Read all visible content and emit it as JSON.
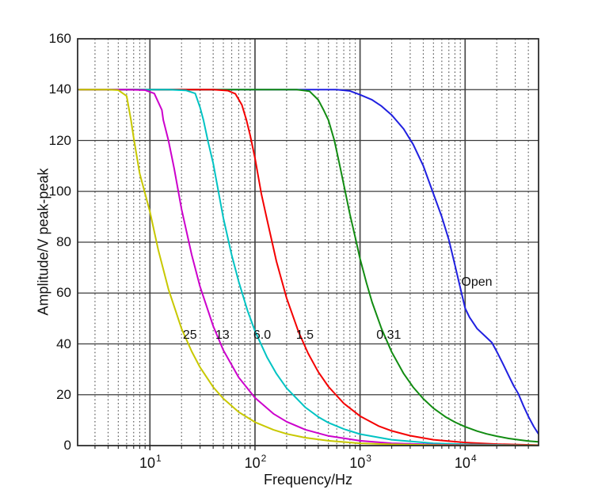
{
  "chart_data": {
    "type": "line",
    "title": "",
    "xlabel": "Frequency/Hz",
    "ylabel": "Amplitude/V peak-peak",
    "x_scale": "log",
    "xlim": [
      2.05,
      50000
    ],
    "ylim": [
      0,
      160
    ],
    "y_ticks": [
      0,
      20,
      40,
      60,
      80,
      100,
      120,
      140,
      160
    ],
    "x_ticks": [
      {
        "value": 10,
        "base": "10",
        "exp": "1"
      },
      {
        "value": 100,
        "base": "10",
        "exp": "2"
      },
      {
        "value": 1000,
        "base": "10",
        "exp": "3"
      },
      {
        "value": 10000,
        "base": "10",
        "exp": "4"
      }
    ],
    "minor_grid_multipliers": [
      2,
      3,
      4,
      5,
      6,
      7,
      8,
      9
    ],
    "grid": "on",
    "legend": "none",
    "plateau_amplitude": 140,
    "series": [
      {
        "label": "25",
        "color": "#c8c800",
        "corner_hz": 6.6,
        "points": [
          [
            2.1,
            140
          ],
          [
            3,
            140
          ],
          [
            4,
            140
          ],
          [
            5,
            139.8
          ],
          [
            6,
            137.5
          ],
          [
            6.6,
            128
          ],
          [
            7,
            121
          ],
          [
            8,
            107
          ],
          [
            10,
            92
          ],
          [
            12,
            77
          ],
          [
            15,
            61.5
          ],
          [
            20,
            46
          ],
          [
            25,
            37
          ],
          [
            30,
            30.8
          ],
          [
            40,
            23
          ],
          [
            50,
            18.5
          ],
          [
            70,
            13.2
          ],
          [
            100,
            9.2
          ],
          [
            150,
            6.2
          ],
          [
            200,
            4.6
          ],
          [
            300,
            3.1
          ],
          [
            500,
            1.9
          ],
          [
            1000,
            0.9
          ],
          [
            2000,
            0.5
          ],
          [
            5000,
            0.2
          ],
          [
            10000,
            0.1
          ],
          [
            20000,
            0.1
          ],
          [
            50000,
            0.1
          ]
        ]
      },
      {
        "label": "13",
        "color": "#cc00cc",
        "corner_hz": 13.4,
        "points": [
          [
            2.1,
            140
          ],
          [
            6,
            140
          ],
          [
            9,
            139.8
          ],
          [
            11,
            138.5
          ],
          [
            13,
            132
          ],
          [
            13.4,
            128
          ],
          [
            15,
            120
          ],
          [
            17,
            109
          ],
          [
            20,
            93
          ],
          [
            25,
            75
          ],
          [
            30,
            62.5
          ],
          [
            40,
            47
          ],
          [
            50,
            37.5
          ],
          [
            70,
            26.8
          ],
          [
            100,
            18.8
          ],
          [
            150,
            12.5
          ],
          [
            200,
            9.4
          ],
          [
            300,
            6.3
          ],
          [
            500,
            3.8
          ],
          [
            1000,
            1.9
          ],
          [
            2000,
            0.9
          ],
          [
            5000,
            0.4
          ],
          [
            10000,
            0.2
          ],
          [
            50000,
            0.1
          ]
        ]
      },
      {
        "label": "6.0",
        "color": "#00c3c3",
        "corner_hz": 32,
        "points": [
          [
            2.1,
            140
          ],
          [
            15,
            140
          ],
          [
            22,
            139.7
          ],
          [
            27,
            138.5
          ],
          [
            30,
            133
          ],
          [
            32.3,
            128
          ],
          [
            36,
            119
          ],
          [
            40,
            111
          ],
          [
            50,
            89.5
          ],
          [
            60,
            75
          ],
          [
            70,
            64.5
          ],
          [
            85,
            53
          ],
          [
            100,
            45
          ],
          [
            130,
            34.8
          ],
          [
            160,
            28.3
          ],
          [
            200,
            22.6
          ],
          [
            300,
            15.1
          ],
          [
            400,
            11.3
          ],
          [
            500,
            9
          ],
          [
            700,
            6.5
          ],
          [
            1000,
            4.5
          ],
          [
            2000,
            2.3
          ],
          [
            5000,
            0.9
          ],
          [
            10000,
            0.5
          ],
          [
            50000,
            0.1
          ]
        ]
      },
      {
        "label": "1.5",
        "color": "#f40000",
        "corner_hz": 83,
        "points": [
          [
            2.1,
            140
          ],
          [
            40,
            140
          ],
          [
            55,
            139.6
          ],
          [
            65,
            138.4
          ],
          [
            75,
            134
          ],
          [
            83,
            128
          ],
          [
            90,
            122
          ],
          [
            100,
            113
          ],
          [
            115,
            99
          ],
          [
            130,
            89
          ],
          [
            160,
            72.5
          ],
          [
            200,
            58
          ],
          [
            260,
            44.7
          ],
          [
            320,
            36.3
          ],
          [
            400,
            29
          ],
          [
            500,
            23.2
          ],
          [
            700,
            16.6
          ],
          [
            1000,
            11.6
          ],
          [
            1500,
            7.7
          ],
          [
            2000,
            5.8
          ],
          [
            3000,
            3.9
          ],
          [
            5000,
            2.3
          ],
          [
            10000,
            1.2
          ],
          [
            20000,
            0.6
          ],
          [
            50000,
            0.2
          ]
        ]
      },
      {
        "label": "0.31",
        "color": "#128c12",
        "corner_hz": 526,
        "points": [
          [
            2.1,
            140
          ],
          [
            250,
            140
          ],
          [
            330,
            139.4
          ],
          [
            400,
            136
          ],
          [
            450,
            132
          ],
          [
            500,
            128
          ],
          [
            570,
            120
          ],
          [
            650,
            109
          ],
          [
            730,
            99
          ],
          [
            800,
            91
          ],
          [
            900,
            82
          ],
          [
            1000,
            73.5
          ],
          [
            1150,
            64
          ],
          [
            1300,
            56.5
          ],
          [
            1600,
            46
          ],
          [
            2000,
            36.8
          ],
          [
            2600,
            28.3
          ],
          [
            3200,
            23
          ],
          [
            4000,
            18.4
          ],
          [
            5000,
            14.7
          ],
          [
            6500,
            11.3
          ],
          [
            8000,
            9.2
          ],
          [
            10000,
            7.4
          ],
          [
            13000,
            5.7
          ],
          [
            16000,
            4.6
          ],
          [
            20000,
            3.7
          ],
          [
            26000,
            2.8
          ],
          [
            32000,
            2.3
          ],
          [
            40000,
            1.8
          ],
          [
            50000,
            1.5
          ]
        ]
      },
      {
        "label": "Open",
        "color": "#2020e0",
        "corner_hz": 4500,
        "points": [
          [
            2.1,
            140
          ],
          [
            600,
            140
          ],
          [
            800,
            139.5
          ],
          [
            1000,
            138
          ],
          [
            1300,
            136
          ],
          [
            1600,
            133.5
          ],
          [
            2000,
            130
          ],
          [
            2600,
            124.5
          ],
          [
            3200,
            118.5
          ],
          [
            4000,
            110
          ],
          [
            5000,
            99
          ],
          [
            6000,
            90
          ],
          [
            7000,
            81
          ],
          [
            8000,
            71
          ],
          [
            9000,
            62
          ],
          [
            10000,
            54
          ],
          [
            11000,
            50.5
          ],
          [
            13000,
            46
          ],
          [
            16000,
            42.5
          ],
          [
            18000,
            40.5
          ],
          [
            20000,
            37
          ],
          [
            23000,
            32
          ],
          [
            26000,
            27.5
          ],
          [
            29000,
            23.5
          ],
          [
            32000,
            20.5
          ],
          [
            36000,
            15.5
          ],
          [
            40000,
            11.5
          ],
          [
            45000,
            7.5
          ],
          [
            50000,
            4.5
          ]
        ]
      }
    ],
    "annotations": [
      {
        "text": "25",
        "freq": 24,
        "amp": 43.3
      },
      {
        "text": "13",
        "freq": 49,
        "amp": 43.3
      },
      {
        "text": "6.0",
        "freq": 117,
        "amp": 43.3
      },
      {
        "text": "1.5",
        "freq": 298,
        "amp": 43.3
      },
      {
        "text": "0.31",
        "freq": 1875,
        "amp": 43.3
      },
      {
        "text": "Open",
        "freq": 12900,
        "amp": 64
      }
    ]
  }
}
